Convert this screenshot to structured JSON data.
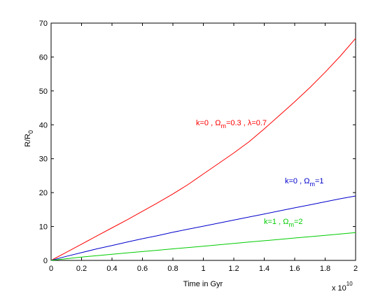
{
  "chart_data": {
    "type": "line",
    "xlabel": "Time in Gyr",
    "ylabel": "R/R0",
    "ylabel_main": "R/R",
    "ylabel_sub": "0",
    "xlim": [
      0,
      2
    ],
    "ylim": [
      0,
      70
    ],
    "x_multiplier": {
      "base": "x 10",
      "exponent": "10"
    },
    "xticks": [
      0,
      0.2,
      0.4,
      0.6,
      0.8,
      1,
      1.2,
      1.4,
      1.6,
      1.8,
      2
    ],
    "xtick_labels": [
      "0",
      "0.2",
      "0.4",
      "0.6",
      "0.8",
      "1",
      "1.2",
      "1.4",
      "1.6",
      "1.8",
      "2"
    ],
    "yticks": [
      0,
      10,
      20,
      30,
      40,
      50,
      60,
      70
    ],
    "ytick_labels": [
      "0",
      "10",
      "20",
      "30",
      "40",
      "50",
      "60",
      "70"
    ],
    "grid": false,
    "series": [
      {
        "label": "k=0 , Ωm=0.3 , λ=0.7",
        "label_parts": [
          {
            "text": "k=0 , Ω"
          },
          {
            "text": "m",
            "sub": true
          },
          {
            "text": "=0.3 , λ=0.7"
          }
        ],
        "color": "#ff0000",
        "x": [
          0,
          0.1,
          0.2,
          0.3,
          0.4,
          0.5,
          0.6,
          0.7,
          0.8,
          0.9,
          1.0,
          1.1,
          1.2,
          1.3,
          1.4,
          1.5,
          1.6,
          1.7,
          1.8,
          1.9,
          2.0
        ],
        "y": [
          0,
          2.4,
          4.8,
          7.2,
          9.6,
          12.0,
          14.5,
          17.0,
          19.6,
          22.4,
          25.5,
          28.6,
          31.7,
          35.0,
          38.8,
          42.8,
          46.8,
          51.0,
          55.5,
          60.3,
          65.5
        ]
      },
      {
        "label": "k=0 , Ωm=1",
        "label_parts": [
          {
            "text": "k=0 , Ω"
          },
          {
            "text": "m",
            "sub": true
          },
          {
            "text": "=1"
          }
        ],
        "color": "#0000cc",
        "x": [
          0,
          0.1,
          0.2,
          0.3,
          0.4,
          0.5,
          0.6,
          0.7,
          0.8,
          0.9,
          1.0,
          1.1,
          1.2,
          1.3,
          1.4,
          1.5,
          1.6,
          1.7,
          1.8,
          1.9,
          2.0
        ],
        "y": [
          0,
          1.2,
          2.3,
          3.4,
          4.4,
          5.4,
          6.4,
          7.3,
          8.3,
          9.2,
          10.1,
          11.0,
          11.9,
          12.8,
          13.7,
          14.6,
          15.5,
          16.4,
          17.3,
          18.2,
          19.0
        ]
      },
      {
        "label": "k=1 , Ωm=2",
        "label_parts": [
          {
            "text": "k=1 , Ω"
          },
          {
            "text": "m",
            "sub": true
          },
          {
            "text": "=2"
          }
        ],
        "color": "#00cc00",
        "x": [
          0,
          0.1,
          0.2,
          0.3,
          0.4,
          0.5,
          0.6,
          0.7,
          0.8,
          0.9,
          1.0,
          1.1,
          1.2,
          1.3,
          1.4,
          1.5,
          1.6,
          1.7,
          1.8,
          1.9,
          2.0
        ],
        "y": [
          0,
          0.5,
          1.0,
          1.4,
          1.8,
          2.2,
          2.6,
          3.0,
          3.4,
          3.8,
          4.2,
          4.6,
          5.0,
          5.4,
          5.8,
          6.2,
          6.6,
          7.0,
          7.4,
          7.8,
          8.2
        ]
      }
    ]
  }
}
